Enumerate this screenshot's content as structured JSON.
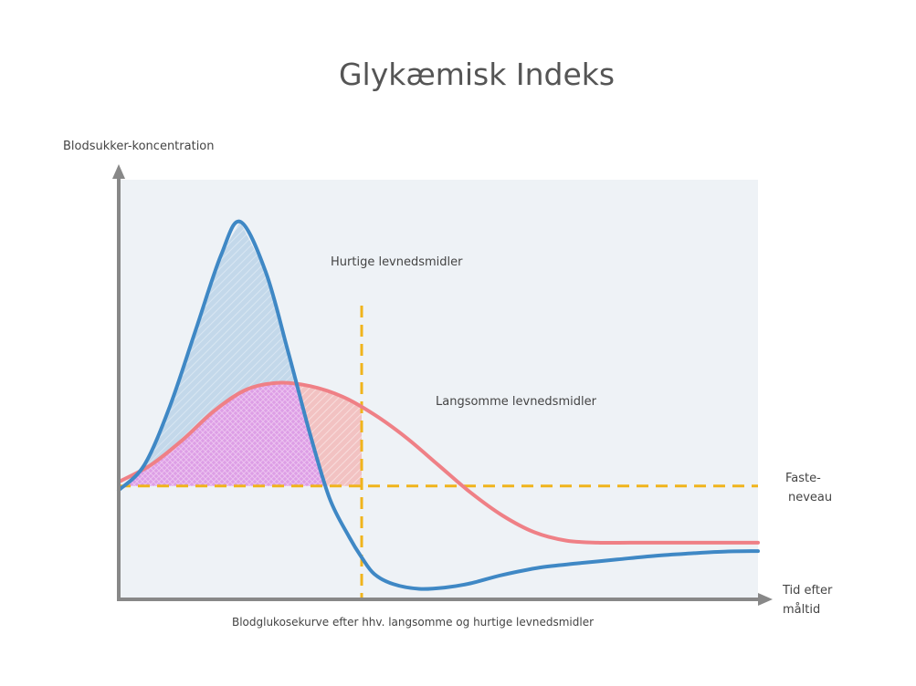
{
  "title": "Glykæmisk Indeks",
  "y_axis_label": "Blodsukker-koncentration",
  "x_axis_label_line1": "Tid efter",
  "x_axis_label_line2": "måltid",
  "caption": "Blodglukosekurve efter hhv. langsomme og hurtige levnedsmidler",
  "fasting_label_line1": "Faste-",
  "fasting_label_line2": "neveau",
  "colors": {
    "fast_curve": "#3f88c5",
    "slow_curve": "#ef8086",
    "reference_lines": "#f0b41c",
    "plot_background": "#eef2f6",
    "axes": "#888888"
  },
  "chart_data": {
    "type": "line",
    "title": "Glykæmisk Indeks",
    "xlabel": "Tid efter måltid",
    "ylabel": "Blodsukker-koncentration",
    "xlim": [
      0,
      100
    ],
    "ylim": [
      0,
      100
    ],
    "grid": false,
    "fasting_level": 27,
    "vertical_marker_x": 38,
    "series": [
      {
        "name": "Hurtige levnedsmidler",
        "x": [
          0,
          4,
          8,
          12,
          16,
          19,
          23,
          26.5,
          30,
          33,
          36,
          38,
          40,
          43,
          47,
          51,
          55,
          60,
          66,
          72,
          78,
          84,
          90,
          95,
          100
        ],
        "values": [
          26,
          32,
          46,
          64,
          82,
          90,
          78,
          59,
          39,
          24,
          15,
          10,
          6,
          3.6,
          2.5,
          2.8,
          3.8,
          5.8,
          7.6,
          8.6,
          9.5,
          10.4,
          11,
          11.4,
          11.5
        ]
      },
      {
        "name": "Langsomme levnedsmidler",
        "x": [
          0,
          5,
          10,
          15,
          20,
          25,
          30,
          35,
          40,
          45,
          50,
          55,
          60,
          65,
          70,
          75,
          80,
          85,
          90,
          95,
          100
        ],
        "values": [
          28,
          32,
          38,
          45,
          50,
          51.6,
          50.8,
          48.3,
          44,
          38.5,
          32,
          25.5,
          20,
          16,
          14,
          13.5,
          13.5,
          13.5,
          13.5,
          13.5,
          13.5
        ]
      }
    ]
  }
}
